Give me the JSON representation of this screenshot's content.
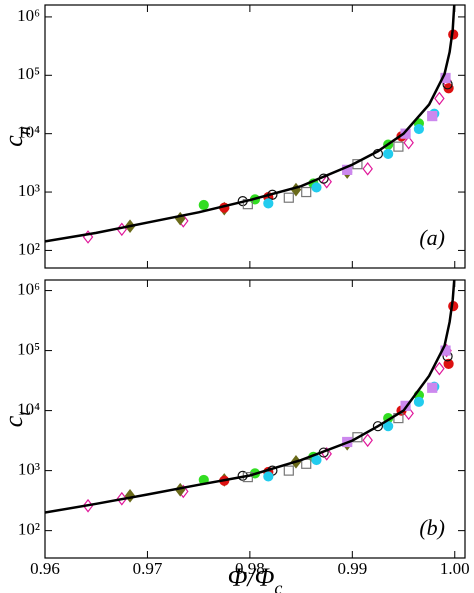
{
  "chart_data": [
    {
      "type": "scatter",
      "xlim": [
        0.96,
        1.001
      ],
      "ylim": [
        50,
        1600000
      ],
      "log_y": true,
      "xtick_labels": false,
      "xticks": [
        0.96,
        0.97,
        0.98,
        0.99,
        {
          "value": 1,
          "label": "1.00"
        }
      ],
      "yticks": [
        {
          "value": 100,
          "label": "10²"
        },
        {
          "value": 1000,
          "label": "10³"
        },
        {
          "value": 10000,
          "label": "10⁴"
        },
        {
          "value": 100000,
          "label": "10⁵"
        },
        {
          "value": 1000000,
          "label": "10⁶"
        }
      ],
      "ylabel": [
        "c",
        "n"
      ],
      "annotation": "(a)",
      "series": [
        {
          "marker": "diamond-open",
          "color": "#e0189a",
          "x": [
            0.9642,
            0.9675,
            0.9735,
            0.9875,
            0.9915,
            0.9955,
            0.9985,
            0.9992
          ],
          "values": [
            170,
            230,
            320,
            1500,
            2500,
            7000,
            40000,
            80000
          ]
        },
        {
          "marker": "diamond",
          "color": "#6b6b1a",
          "x": [
            0.9683,
            0.9732,
            0.9775,
            0.9845,
            0.9895
          ],
          "values": [
            260,
            350,
            520,
            1100,
            2200
          ]
        },
        {
          "marker": "circle",
          "color": "#33dd22",
          "x": [
            0.9755,
            0.9805,
            0.9862,
            0.9935,
            0.9965
          ],
          "values": [
            600,
            750,
            1400,
            6500,
            15000
          ]
        },
        {
          "marker": "circle",
          "color": "#dd1111",
          "x": [
            0.9775,
            0.9818,
            0.9948,
            0.9994,
            0.99985
          ],
          "values": [
            540,
            820,
            9000,
            60000,
            500000
          ]
        },
        {
          "marker": "circle-open",
          "color": "#111111",
          "x": [
            0.9793,
            0.9822,
            0.9872,
            0.9925,
            0.9993
          ],
          "values": [
            700,
            900,
            1700,
            4500,
            70000
          ]
        },
        {
          "marker": "square-open",
          "color": "#777777",
          "x": [
            0.9798,
            0.9838,
            0.9855,
            0.9905,
            0.9945
          ],
          "values": [
            620,
            800,
            1000,
            3000,
            6000
          ]
        },
        {
          "marker": "circle",
          "color": "#22ccee",
          "x": [
            0.9818,
            0.9865,
            0.9935,
            0.9965,
            0.998
          ],
          "values": [
            640,
            1200,
            4500,
            12000,
            22000
          ]
        },
        {
          "marker": "square",
          "color": "#cc88ee",
          "x": [
            0.9895,
            0.9952,
            0.9978,
            0.9991
          ],
          "values": [
            2400,
            10000,
            20000,
            90000
          ]
        },
        {
          "marker": "line",
          "color": "#000000",
          "x": [
            0.96,
            0.965,
            0.97,
            0.975,
            0.98,
            0.985,
            0.99,
            0.9925,
            0.995,
            0.9975,
            0.999,
            0.9995,
            0.9998,
            0.99995
          ],
          "values": [
            143,
            200,
            300,
            450,
            730,
            1260,
            2950,
            5000,
            10000,
            31600,
            105000,
            250000,
            600000,
            1600000
          ]
        }
      ]
    },
    {
      "type": "scatter",
      "xlim": [
        0.96,
        1.001
      ],
      "ylim": [
        35,
        1500000
      ],
      "log_y": true,
      "xtick_labels": true,
      "xticks": [
        0.96,
        0.97,
        0.98,
        0.99,
        {
          "value": 1,
          "label": "1.00"
        }
      ],
      "yticks": [
        {
          "value": 100,
          "label": "10²"
        },
        {
          "value": 1000,
          "label": "10³"
        },
        {
          "value": 10000,
          "label": "10⁴"
        },
        {
          "value": 100000,
          "label": "10⁵"
        },
        {
          "value": 1000000,
          "label": "10⁶"
        }
      ],
      "ylabel": [
        "c",
        "t"
      ],
      "xlabel": [
        "Φ/Φ",
        "c"
      ],
      "annotation": "(b)",
      "series": [
        {
          "marker": "diamond-open",
          "color": "#e0189a",
          "x": [
            0.9642,
            0.9675,
            0.9735,
            0.9875,
            0.9915,
            0.9955,
            0.9985,
            0.9992
          ],
          "values": [
            260,
            340,
            450,
            1900,
            3200,
            9000,
            50000,
            100000
          ]
        },
        {
          "marker": "diamond",
          "color": "#6b6b1a",
          "x": [
            0.9683,
            0.9732,
            0.9775,
            0.9845,
            0.9895
          ],
          "values": [
            380,
            480,
            700,
            1400,
            2800
          ]
        },
        {
          "marker": "circle",
          "color": "#33dd22",
          "x": [
            0.9755,
            0.9805,
            0.9862,
            0.9935,
            0.9965
          ],
          "values": [
            700,
            900,
            1700,
            7500,
            18000
          ]
        },
        {
          "marker": "circle",
          "color": "#dd1111",
          "x": [
            0.9775,
            0.9818,
            0.9948,
            0.9994,
            0.99985
          ],
          "values": [
            680,
            950,
            10000,
            60000,
            550000
          ]
        },
        {
          "marker": "circle-open",
          "color": "#111111",
          "x": [
            0.9793,
            0.9822,
            0.9872,
            0.9925,
            0.9993
          ],
          "values": [
            820,
            1000,
            2000,
            5500,
            80000
          ]
        },
        {
          "marker": "square-open",
          "color": "#777777",
          "x": [
            0.9798,
            0.9838,
            0.9855,
            0.9905,
            0.9945
          ],
          "values": [
            780,
            1000,
            1300,
            3600,
            7500
          ]
        },
        {
          "marker": "circle",
          "color": "#22ccee",
          "x": [
            0.9818,
            0.9865,
            0.9935,
            0.9965,
            0.998
          ],
          "values": [
            800,
            1500,
            5500,
            14000,
            25000
          ]
        },
        {
          "marker": "square",
          "color": "#cc88ee",
          "x": [
            0.9895,
            0.9952,
            0.9978,
            0.9991
          ],
          "values": [
            3000,
            12000,
            24000,
            100000
          ]
        },
        {
          "marker": "line",
          "color": "#000000",
          "x": [
            0.96,
            0.965,
            0.97,
            0.975,
            0.98,
            0.985,
            0.99,
            0.9925,
            0.995,
            0.9975,
            0.999,
            0.9995,
            0.9998,
            0.99995
          ],
          "values": [
            200,
            280,
            400,
            580,
            830,
            1500,
            3160,
            5500,
            10000,
            38000,
            120000,
            300000,
            700000,
            1500000
          ]
        }
      ]
    }
  ]
}
